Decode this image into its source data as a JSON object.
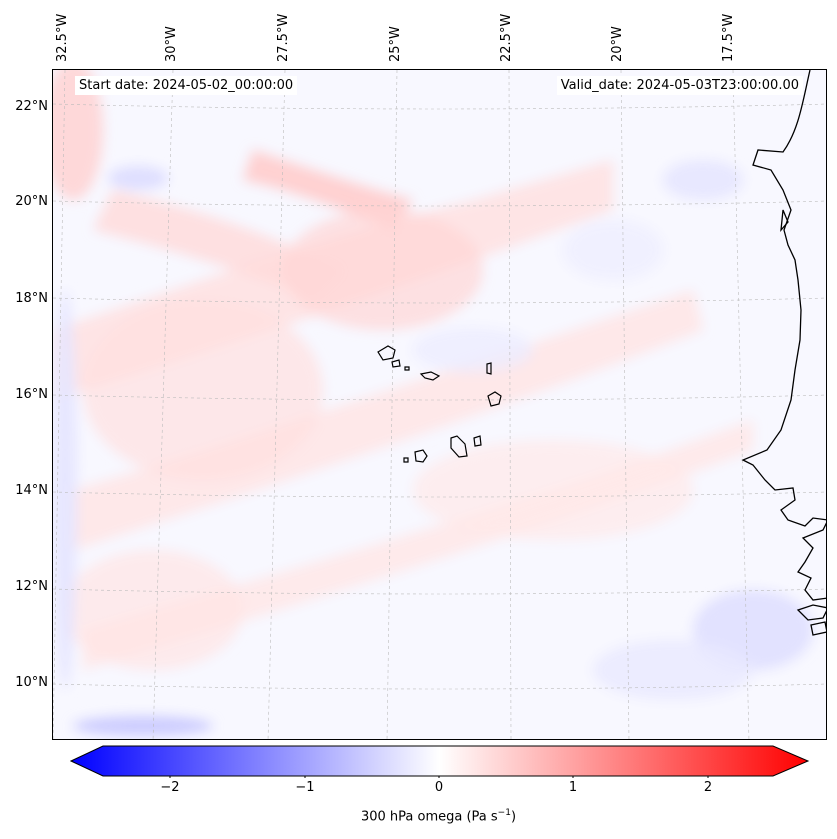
{
  "header": {
    "start_date": "Start date: 2024-05-02_00:00:00",
    "valid_date": "Valid_date: 2024-05-03T23:00:00.00"
  },
  "axes": {
    "lon_labels": [
      "32.5°W",
      "30°W",
      "27.5°W",
      "25°W",
      "22.5°W",
      "20°W",
      "17.5°W"
    ],
    "lat_labels": [
      "22°N",
      "20°N",
      "18°N",
      "16°N",
      "14°N",
      "12°N",
      "10°N"
    ]
  },
  "colorbar": {
    "ticks": [
      "−2",
      "−1",
      "0",
      "1",
      "2"
    ],
    "title": "300 hPa omega (Pa s",
    "title_sup": "−1",
    "title_end": ")",
    "min": -2.6,
    "max": 2.6,
    "neg_color": "#0000ff",
    "pos_color": "#ff0000"
  },
  "chart_data": {
    "type": "heatmap",
    "title": "300 hPa omega field",
    "variable": "300 hPa omega",
    "units": "Pa s^-1",
    "colorbar_range": [
      -2.6,
      2.6
    ],
    "colorbar_ticks": [
      -2,
      -1,
      0,
      1,
      2
    ],
    "lon_ticks_deg": [
      -32.5,
      -30,
      -27.5,
      -25,
      -22.5,
      -20,
      -17.5
    ],
    "lat_ticks_deg": [
      22,
      20,
      18,
      16,
      14,
      12,
      10
    ],
    "typical_values": "mostly between -0.3 and +0.3 Pa s^-1, weak positive bands oriented SW-NE"
  }
}
